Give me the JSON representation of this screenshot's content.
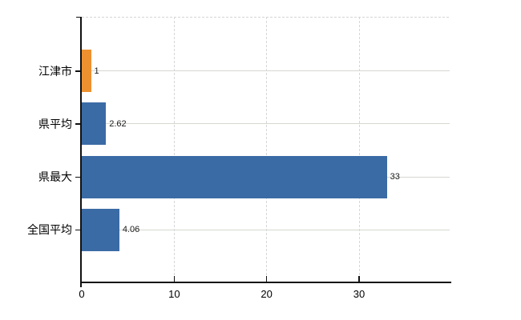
{
  "chart": {
    "background": "#ffffff",
    "axis_color": "#111111",
    "horizontal_grid_color": "#d5d8d0",
    "vertical_grid_color": "#d6d6da",
    "text_color": "#000000"
  },
  "chart_data": {
    "type": "bar",
    "orientation": "horizontal",
    "title": "",
    "xlabel": "",
    "ylabel": "",
    "categories": [
      "江津市",
      "県平均",
      "県最大",
      "全国平均"
    ],
    "values": [
      1,
      2.62,
      33,
      4.06
    ],
    "value_labels": [
      "1",
      "2.62",
      "33",
      "4.06"
    ],
    "bar_colors": [
      "#ed9130",
      "#3b6ba5",
      "#3b6ba5",
      "#3b6ba5"
    ],
    "x_ticks": [
      0,
      10,
      20,
      30
    ],
    "x_tick_labels": [
      "0",
      "10",
      "20",
      "30"
    ],
    "xlim": [
      0,
      39.8
    ],
    "grid": "both",
    "legend": "none"
  }
}
